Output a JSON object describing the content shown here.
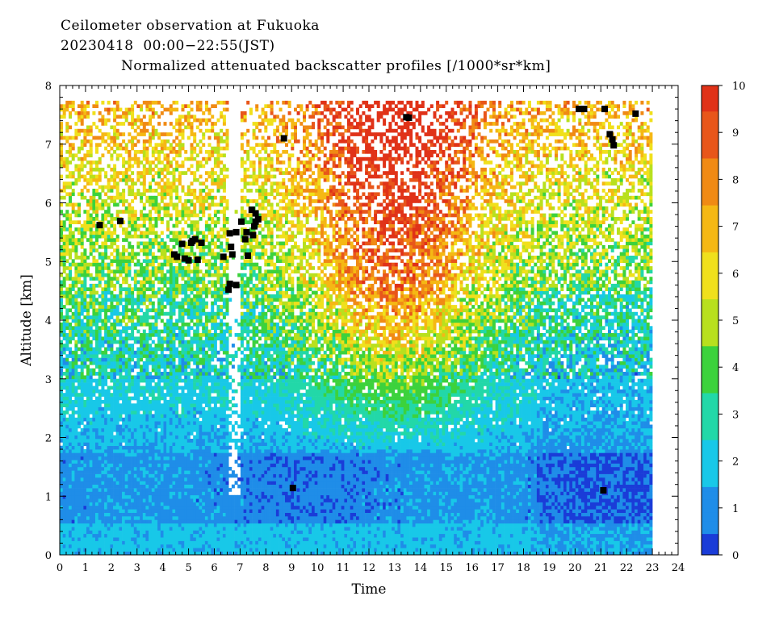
{
  "header": {
    "line1": "Ceilometer observation at Fukuoka",
    "line2": "20230418  00:00−22:55(JST)",
    "line3": "Normalized attenuated backscatter profiles [/1000*sr*km]"
  },
  "chart_data": {
    "type": "heatmap",
    "title": "Normalized attenuated backscatter profiles [/1000*sr*km]",
    "xlabel": "Time",
    "ylabel": "Altitude [km]",
    "xlim": [
      0,
      24
    ],
    "ylim": [
      0,
      8
    ],
    "x_ticks": [
      "0",
      "1",
      "2",
      "3",
      "4",
      "5",
      "6",
      "7",
      "8",
      "9",
      "10",
      "11",
      "12",
      "13",
      "14",
      "15",
      "16",
      "17",
      "18",
      "19",
      "20",
      "21",
      "22",
      "23",
      "24"
    ],
    "y_ticks": [
      "0",
      "1",
      "2",
      "3",
      "4",
      "5",
      "6",
      "7",
      "8"
    ],
    "data_extent": {
      "time_end_hours": 22.92,
      "altitude_top_km": 7.68
    },
    "colorbar": {
      "range": [
        0,
        10
      ],
      "ticks": [
        "0",
        "1",
        "2",
        "3",
        "4",
        "5",
        "6",
        "7",
        "8",
        "9",
        "10"
      ],
      "colors": [
        "#1a3cd8",
        "#1f8de8",
        "#18c8e8",
        "#22d8a8",
        "#3cd23c",
        "#b8e01e",
        "#f0e01c",
        "#f5b814",
        "#f08a14",
        "#e8561a",
        "#e03218"
      ]
    },
    "field_description_levels": [
      {
        "altitude_km": [
          0,
          0.5
        ],
        "approx_value": 1.8
      },
      {
        "altitude_km": [
          0.5,
          1.7
        ],
        "approx_value": 1.0
      },
      {
        "altitude_km": [
          1.7,
          3.0
        ],
        "approx_value": 1.8
      },
      {
        "altitude_km": [
          3.0,
          4.5
        ],
        "approx_value": 3.0
      },
      {
        "altitude_km": [
          4.5,
          7.68
        ],
        "approx_value": 6.5
      }
    ],
    "cloud_base_markers": [
      [
        1.55,
        5.62
      ],
      [
        2.35,
        5.69
      ],
      [
        4.45,
        5.12
      ],
      [
        4.55,
        5.08
      ],
      [
        4.75,
        5.3
      ],
      [
        4.85,
        5.05
      ],
      [
        5.0,
        5.02
      ],
      [
        5.15,
        5.35
      ],
      [
        5.25,
        5.38
      ],
      [
        5.35,
        5.03
      ],
      [
        5.5,
        5.32
      ],
      [
        5.1,
        5.32
      ],
      [
        6.35,
        5.08
      ],
      [
        6.55,
        4.52
      ],
      [
        6.6,
        4.62
      ],
      [
        6.6,
        5.48
      ],
      [
        6.7,
        5.12
      ],
      [
        6.65,
        5.25
      ],
      [
        6.85,
        5.5
      ],
      [
        6.85,
        4.6
      ],
      [
        7.05,
        5.68
      ],
      [
        7.2,
        5.38
      ],
      [
        7.25,
        5.5
      ],
      [
        7.3,
        5.1
      ],
      [
        7.5,
        5.45
      ],
      [
        7.45,
        5.88
      ],
      [
        7.6,
        5.82
      ],
      [
        7.6,
        5.68
      ],
      [
        7.7,
        5.72
      ],
      [
        7.55,
        5.6
      ],
      [
        8.7,
        7.1
      ],
      [
        9.05,
        1.14
      ],
      [
        13.45,
        7.46
      ],
      [
        13.55,
        7.45
      ],
      [
        20.15,
        7.6
      ],
      [
        20.35,
        7.6
      ],
      [
        21.15,
        7.6
      ],
      [
        21.35,
        7.17
      ],
      [
        21.45,
        7.08
      ],
      [
        21.5,
        6.98
      ],
      [
        22.35,
        7.52
      ],
      [
        21.1,
        1.1
      ]
    ]
  }
}
